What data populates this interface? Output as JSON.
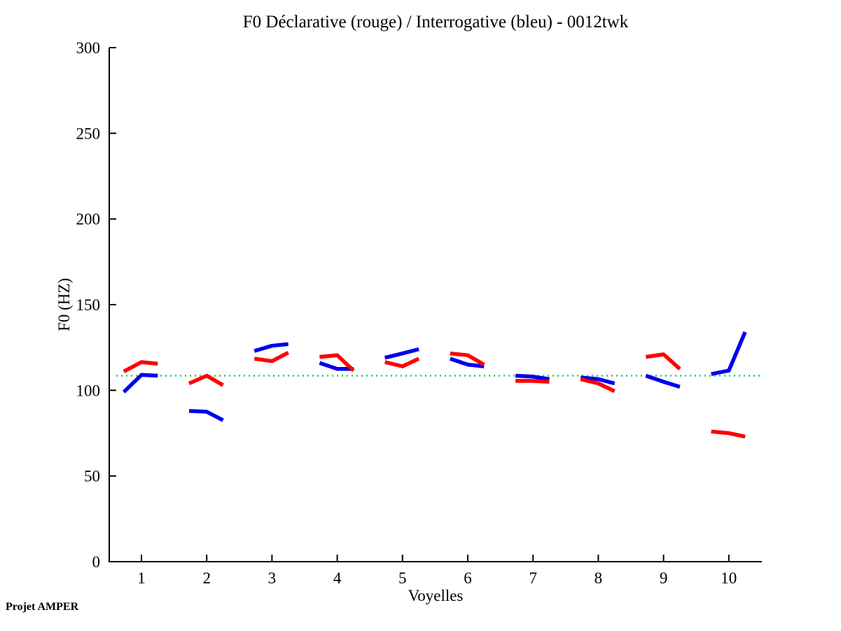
{
  "chart_data": {
    "type": "line",
    "title": "F0 Déclarative (rouge) / Interrogative (bleu) - 0012twk",
    "xlabel": "Voyelles",
    "ylabel": "F0 (HZ)",
    "footer": "Projet AMPER",
    "xlim": [
      0.5,
      10.5
    ],
    "ylim": [
      0,
      300
    ],
    "xticks": [
      1,
      2,
      3,
      4,
      5,
      6,
      7,
      8,
      9,
      10
    ],
    "yticks": [
      0,
      50,
      100,
      150,
      200,
      250,
      300
    ],
    "grid": false,
    "legend_position": "none",
    "reference_line": {
      "y": 108.5,
      "color": "#22cc55",
      "style": "dotted"
    },
    "point_x_offsets": [
      -0.27,
      0,
      0.25
    ],
    "series": [
      {
        "name": "Déclarative (rouge)",
        "color": "#ff0000",
        "segments": [
          [
            111,
            116.5,
            115.5
          ],
          [
            104,
            108.5,
            103
          ],
          [
            118.5,
            117,
            122
          ],
          [
            119.5,
            120.5,
            111.5
          ],
          [
            116.5,
            114,
            118.5
          ],
          [
            121.5,
            120.5,
            115
          ],
          [
            105.5,
            105.5,
            105
          ],
          [
            106.5,
            104,
            99.5
          ],
          [
            119.5,
            121,
            112.5
          ],
          [
            76,
            75,
            73
          ]
        ]
      },
      {
        "name": "Interrogative (bleu)",
        "color": "#0000ee",
        "segments": [
          [
            99,
            109,
            108.5
          ],
          [
            88,
            87.5,
            82.5
          ],
          [
            123,
            126,
            127
          ],
          [
            116,
            112.5,
            112.5
          ],
          [
            119,
            121.5,
            124
          ],
          [
            118.5,
            115,
            114
          ],
          [
            108.5,
            108,
            106.5
          ],
          [
            107.5,
            106.5,
            104
          ],
          [
            108.5,
            105,
            102
          ],
          [
            109.5,
            111.5,
            134
          ]
        ]
      }
    ]
  }
}
